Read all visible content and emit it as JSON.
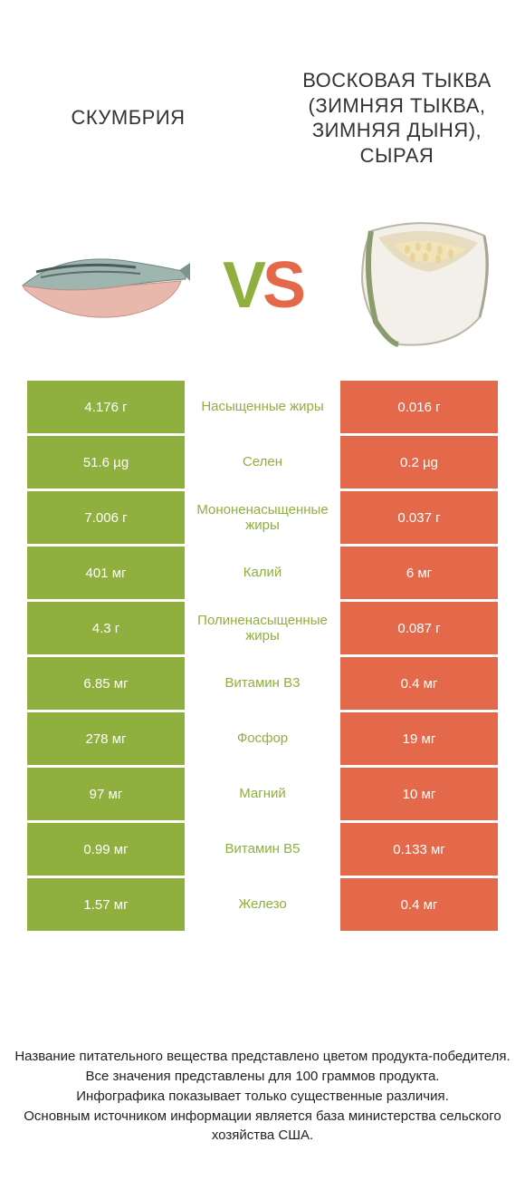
{
  "colors": {
    "left": "#8faf3f",
    "right": "#e4694b",
    "row_bg": "#ffffff",
    "text": "#333333"
  },
  "header": {
    "left_title": "СКУМБРИЯ",
    "right_title": "ВОСКОВАЯ ТЫКВА (ЗИМНЯЯ ТЫКВА, ЗИМНЯЯ ДЫНЯ), СЫРАЯ"
  },
  "vs": {
    "v": "V",
    "s": "S"
  },
  "rows": [
    {
      "left": "4.176 г",
      "mid": "Насыщенные жиры",
      "right": "0.016 г",
      "winner": "left"
    },
    {
      "left": "51.6 µg",
      "mid": "Селен",
      "right": "0.2 µg",
      "winner": "left"
    },
    {
      "left": "7.006 г",
      "mid": "Мононенасыщенные жиры",
      "right": "0.037 г",
      "winner": "left"
    },
    {
      "left": "401 мг",
      "mid": "Калий",
      "right": "6 мг",
      "winner": "left"
    },
    {
      "left": "4.3 г",
      "mid": "Полиненасыщенные жиры",
      "right": "0.087 г",
      "winner": "left"
    },
    {
      "left": "6.85 мг",
      "mid": "Витамин B3",
      "right": "0.4 мг",
      "winner": "left"
    },
    {
      "left": "278 мг",
      "mid": "Фосфор",
      "right": "19 мг",
      "winner": "left"
    },
    {
      "left": "97 мг",
      "mid": "Магний",
      "right": "10 мг",
      "winner": "left"
    },
    {
      "left": "0.99 мг",
      "mid": "Витамин B5",
      "right": "0.133 мг",
      "winner": "left"
    },
    {
      "left": "1.57 мг",
      "mid": "Железо",
      "right": "0.4 мг",
      "winner": "left"
    }
  ],
  "footer": {
    "line1": "Название питательного вещества представлено цветом продукта-победителя.",
    "line2": "Все значения представлены для 100 граммов продукта.",
    "line3": "Инфографика показывает только существенные различия.",
    "line4": "Основным источником информации является база министерства сельского хозяйства США."
  }
}
